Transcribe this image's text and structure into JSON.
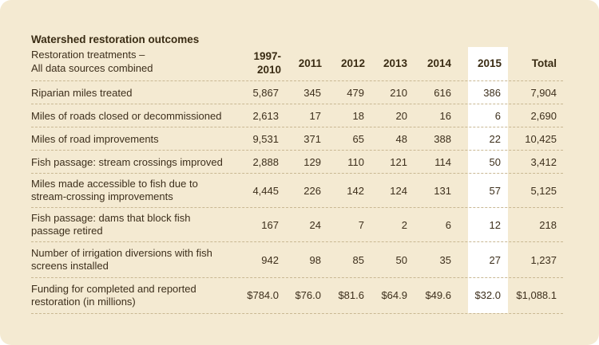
{
  "table": {
    "title": "Watershed restoration outcomes",
    "subtitle": "Restoration treatments –\nAll data sources combined",
    "columns": [
      "1997-\n2010",
      "2011",
      "2012",
      "2013",
      "2014",
      "2015",
      "Total"
    ],
    "highlight_column": "2015",
    "highlight_color": "#ffffff",
    "background_color": "#f4ead2",
    "rows": [
      {
        "label": "Riparian miles treated",
        "values": [
          "5,867",
          "345",
          "479",
          "210",
          "616",
          "386",
          "7,904"
        ]
      },
      {
        "label": "Miles of roads closed or decommissioned",
        "values": [
          "2,613",
          "17",
          "18",
          "20",
          "16",
          "6",
          "2,690"
        ]
      },
      {
        "label": "Miles of road improvements",
        "values": [
          "9,531",
          "371",
          "65",
          "48",
          "388",
          "22",
          "10,425"
        ]
      },
      {
        "label": "Fish passage: stream crossings improved",
        "values": [
          "2,888",
          "129",
          "110",
          "121",
          "114",
          "50",
          "3,412"
        ]
      },
      {
        "label": "Miles made accessible to fish due to\nstream-crossing improvements",
        "values": [
          "4,445",
          "226",
          "142",
          "124",
          "131",
          "57",
          "5,125"
        ]
      },
      {
        "label": "Fish passage: dams that block fish\npassage retired",
        "values": [
          "167",
          "24",
          "7",
          "2",
          "6",
          "12",
          "218"
        ]
      },
      {
        "label": "Number of irrigation diversions with fish\nscreens installed",
        "values": [
          "942",
          "98",
          "85",
          "50",
          "35",
          "27",
          "1,237"
        ]
      },
      {
        "label": "Funding for completed and reported\nrestoration (in millions)",
        "values": [
          "$784.0",
          "$76.0",
          "$81.6",
          "$64.9",
          "$49.6",
          "$32.0",
          "$1,088.1"
        ]
      }
    ]
  }
}
